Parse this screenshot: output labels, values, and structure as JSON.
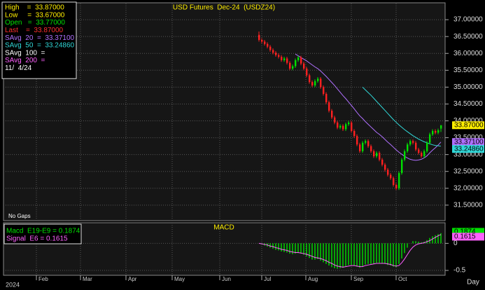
{
  "chart_data": [
    {
      "type": "candlestick",
      "title": "USD Futures  Dec-24  (USDZ24)",
      "annotation": "No Gaps",
      "up_color": "#00e000",
      "down_color": "#ff2020",
      "open": [
        36.55,
        36.4,
        36.35,
        36.28,
        36.2,
        36.1,
        36.02,
        35.95,
        35.9,
        35.8,
        35.85,
        35.72,
        35.55,
        35.62,
        35.8,
        35.88,
        35.7,
        35.55,
        35.35,
        35.15,
        35.05,
        35.18,
        35.25,
        35.0,
        34.8,
        34.55,
        34.3,
        34.1,
        33.95,
        33.8,
        33.85,
        33.75,
        33.9,
        33.95,
        33.7,
        33.55,
        33.3,
        33.1,
        33.35,
        33.4,
        33.25,
        33.1,
        32.95,
        33.05,
        32.85,
        32.7,
        32.55,
        32.4,
        32.3,
        32.1,
        32.0,
        32.45,
        32.85,
        33.1,
        33.3,
        33.4,
        33.35,
        33.15,
        33.05,
        32.95,
        33.1,
        33.35,
        33.6,
        33.7,
        33.65,
        33.77
      ],
      "high": [
        36.65,
        36.45,
        36.4,
        36.33,
        36.25,
        36.15,
        36.07,
        36.0,
        35.95,
        35.9,
        35.9,
        35.77,
        35.67,
        35.85,
        35.93,
        35.93,
        35.75,
        35.6,
        35.4,
        35.2,
        35.23,
        35.3,
        35.3,
        35.05,
        34.85,
        34.6,
        34.35,
        34.15,
        34.0,
        33.9,
        33.9,
        33.95,
        34.0,
        34.0,
        33.75,
        33.6,
        33.35,
        33.4,
        33.45,
        33.45,
        33.3,
        33.15,
        33.1,
        33.1,
        32.9,
        32.75,
        32.6,
        32.45,
        32.35,
        32.15,
        32.5,
        32.9,
        33.15,
        33.35,
        33.45,
        33.45,
        33.4,
        33.2,
        33.1,
        33.15,
        33.4,
        33.65,
        33.75,
        33.75,
        33.77,
        33.87
      ],
      "low": [
        36.35,
        36.3,
        36.23,
        36.15,
        36.05,
        35.97,
        35.9,
        35.85,
        35.75,
        35.75,
        35.67,
        35.5,
        35.5,
        35.57,
        35.75,
        35.65,
        35.5,
        35.3,
        35.1,
        35.0,
        35.0,
        35.13,
        34.95,
        34.75,
        34.5,
        34.25,
        34.05,
        33.9,
        33.75,
        33.75,
        33.7,
        33.7,
        33.85,
        33.65,
        33.5,
        33.25,
        33.05,
        33.05,
        33.3,
        33.2,
        33.05,
        32.9,
        32.9,
        32.8,
        32.65,
        32.5,
        32.35,
        32.25,
        32.05,
        31.95,
        31.95,
        32.4,
        32.8,
        33.05,
        33.25,
        33.3,
        33.1,
        33.0,
        32.9,
        32.9,
        33.05,
        33.3,
        33.55,
        33.6,
        33.6,
        33.67
      ],
      "close": [
        36.4,
        36.35,
        36.28,
        36.2,
        36.1,
        36.02,
        35.95,
        35.9,
        35.8,
        35.85,
        35.72,
        35.55,
        35.62,
        35.8,
        35.88,
        35.7,
        35.55,
        35.35,
        35.15,
        35.05,
        35.18,
        35.25,
        35.0,
        34.8,
        34.55,
        34.3,
        34.1,
        33.95,
        33.8,
        33.85,
        33.75,
        33.9,
        33.95,
        33.7,
        33.55,
        33.3,
        33.1,
        33.35,
        33.4,
        33.25,
        33.1,
        32.95,
        33.05,
        32.85,
        32.7,
        32.55,
        32.4,
        32.3,
        32.1,
        32.0,
        32.45,
        32.85,
        33.1,
        33.3,
        33.4,
        33.35,
        33.15,
        33.05,
        32.95,
        33.1,
        33.35,
        33.6,
        33.7,
        33.65,
        33.72,
        33.87
      ],
      "series": [
        {
          "name": "SAvg 20",
          "color": "#b070ff",
          "values": [
            null,
            null,
            null,
            null,
            null,
            null,
            null,
            null,
            null,
            null,
            null,
            null,
            null,
            35.98,
            35.93,
            35.88,
            35.83,
            35.78,
            35.72,
            35.66,
            35.6,
            35.55,
            35.48,
            35.4,
            35.32,
            35.23,
            35.14,
            35.05,
            34.95,
            34.85,
            34.75,
            34.66,
            34.56,
            34.46,
            34.36,
            34.25,
            34.15,
            34.07,
            33.98,
            33.9,
            33.82,
            33.74,
            33.66,
            33.6,
            33.53,
            33.45,
            33.37,
            33.3,
            33.22,
            33.14,
            33.07,
            33.01,
            32.95,
            32.9,
            32.86,
            32.84,
            32.83,
            32.84,
            32.86,
            32.9,
            32.96,
            33.05,
            33.13,
            33.2,
            33.28,
            33.371
          ]
        },
        {
          "name": "SAvg 50",
          "color": "#30d8d8",
          "values": [
            null,
            null,
            null,
            null,
            null,
            null,
            null,
            null,
            null,
            null,
            null,
            null,
            null,
            null,
            null,
            null,
            null,
            null,
            null,
            null,
            null,
            null,
            null,
            null,
            null,
            null,
            null,
            null,
            null,
            null,
            null,
            null,
            null,
            null,
            null,
            null,
            null,
            35.0,
            34.92,
            34.84,
            34.76,
            34.67,
            34.58,
            34.49,
            34.4,
            34.31,
            34.22,
            34.13,
            34.04,
            33.96,
            33.88,
            33.81,
            33.74,
            33.68,
            33.62,
            33.56,
            33.51,
            33.46,
            33.42,
            33.38,
            33.35,
            33.32,
            33.29,
            33.27,
            33.26,
            33.2486
          ]
        }
      ],
      "price_tags": [
        {
          "label": "33.87000",
          "color": "#ffee00"
        },
        {
          "label": "33.37100",
          "color": "#b070ff"
        },
        {
          "label": "33.24860",
          "color": "#30d8d8"
        }
      ],
      "ylim": [
        31.04,
        37.48
      ],
      "grid": true,
      "yticks": [
        {
          "value": 31.5,
          "label": "31.50000"
        },
        {
          "value": 32,
          "label": "32.00000"
        },
        {
          "value": 32.5,
          "label": "32.50000"
        },
        {
          "value": 33,
          "label": "33.00000"
        },
        {
          "value": 33.5,
          "label": "33.50000"
        },
        {
          "value": 34,
          "label": "34.00000"
        },
        {
          "value": 34.5,
          "label": "34.50000"
        },
        {
          "value": 35,
          "label": "35.00000"
        },
        {
          "value": 35.5,
          "label": "35.50000"
        },
        {
          "value": 36,
          "label": "36.00000"
        },
        {
          "value": 36.5,
          "label": "36.50000"
        },
        {
          "value": 37,
          "label": "37.00000"
        }
      ]
    },
    {
      "type": "macd",
      "title": "MACD",
      "series": [
        {
          "name": "Macd  E19-E9 = 0.1874",
          "color": "#00e000",
          "values": [
            0.0,
            -0.02,
            -0.04,
            -0.06,
            -0.08,
            -0.1,
            -0.12,
            -0.13,
            -0.15,
            -0.16,
            -0.17,
            -0.19,
            -0.2,
            -0.19,
            -0.18,
            -0.19,
            -0.21,
            -0.24,
            -0.27,
            -0.3,
            -0.3,
            -0.29,
            -0.32,
            -0.35,
            -0.38,
            -0.41,
            -0.44,
            -0.46,
            -0.47,
            -0.46,
            -0.45,
            -0.42,
            -0.4,
            -0.4,
            -0.41,
            -0.43,
            -0.45,
            -0.42,
            -0.39,
            -0.38,
            -0.38,
            -0.38,
            -0.36,
            -0.36,
            -0.37,
            -0.38,
            -0.4,
            -0.41,
            -0.43,
            -0.44,
            -0.38,
            -0.28,
            -0.18,
            -0.08,
            0.0,
            0.04,
            0.04,
            0.03,
            0.02,
            0.03,
            0.06,
            0.1,
            0.13,
            0.15,
            0.17,
            0.1874
          ]
        },
        {
          "name": "Signal  E6 = 0.1615",
          "color": "#ff60ff",
          "values": [
            0.0,
            -0.01,
            -0.02,
            -0.03,
            -0.05,
            -0.06,
            -0.08,
            -0.09,
            -0.11,
            -0.12,
            -0.13,
            -0.15,
            -0.16,
            -0.17,
            -0.17,
            -0.18,
            -0.19,
            -0.2,
            -0.22,
            -0.24,
            -0.26,
            -0.27,
            -0.28,
            -0.3,
            -0.32,
            -0.35,
            -0.37,
            -0.4,
            -0.42,
            -0.43,
            -0.44,
            -0.43,
            -0.42,
            -0.41,
            -0.41,
            -0.42,
            -0.43,
            -0.43,
            -0.41,
            -0.4,
            -0.39,
            -0.38,
            -0.37,
            -0.37,
            -0.37,
            -0.37,
            -0.38,
            -0.39,
            -0.41,
            -0.42,
            -0.41,
            -0.36,
            -0.29,
            -0.21,
            -0.13,
            -0.07,
            -0.03,
            -0.01,
            0.0,
            0.01,
            0.03,
            0.05,
            0.08,
            0.11,
            0.14,
            0.1615
          ]
        }
      ],
      "price_tags": [
        {
          "label": "0.1874",
          "color": "#00e000"
        },
        {
          "label": "0.1615",
          "color": "#ff60ff"
        }
      ],
      "ylim": [
        -0.59,
        0.38
      ],
      "yticks": [
        0,
        -0.5
      ],
      "grid": true
    }
  ],
  "info": {
    "lines": [
      {
        "text": "High    =  33.87000",
        "color": "#ffee00"
      },
      {
        "text": "Low     =  33.67000",
        "color": "#ffee00"
      },
      {
        "text": "Open   =  33.77000",
        "color": "#00e000"
      },
      {
        "text": "Last    =  33.87000",
        "color": "#ff3030"
      },
      {
        "text": "SAvg  20  =  33.37100",
        "color": "#b070ff"
      },
      {
        "text": "SAvg  50  =  33.24860",
        "color": "#30d8d8"
      },
      {
        "text": "SAvg  100  =",
        "color": "#ffffff"
      },
      {
        "text": "SAvg  200  =",
        "color": "#ff60ff"
      },
      {
        "text": "11/  4/24",
        "color": "#ffffff"
      }
    ]
  },
  "x_axis": {
    "months": [
      "Feb",
      "Mar",
      "Apr",
      "May",
      "Jun",
      "Jul",
      "Aug",
      "Sep",
      "Oct"
    ],
    "year": "2024",
    "unit": "Day"
  }
}
